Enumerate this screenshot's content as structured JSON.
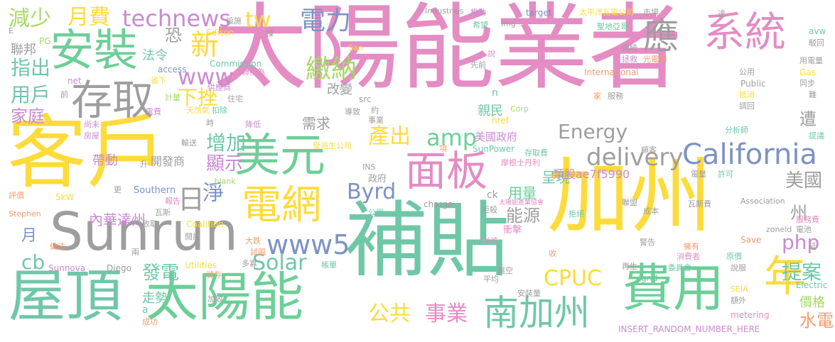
{
  "colors": {
    "pink": "#e48cc3",
    "yellow": "#fddb3a",
    "green": "#6ccf98",
    "teal": "#6fc7a8",
    "blue": "#7d92c4",
    "gray": "#9e9e9e",
    "lime": "#a7d866",
    "orange": "#f59b6d",
    "purple": "#c98bd0"
  },
  "words": [
    {
      "text": "太陽能業者",
      "color": "pink"
    },
    {
      "text": "客戶",
      "color": "yellow"
    },
    {
      "text": "加州",
      "color": "yellow"
    },
    {
      "text": "補貼",
      "color": "teal"
    },
    {
      "text": "Sunrun",
      "color": "gray"
    },
    {
      "text": "屋頂",
      "color": "teal"
    },
    {
      "text": "太陽能",
      "color": "green"
    },
    {
      "text": "費用",
      "color": "green"
    },
    {
      "text": "安裝",
      "color": "green"
    },
    {
      "text": "系統",
      "color": "pink"
    },
    {
      "text": "應",
      "color": "gray"
    },
    {
      "text": "存取",
      "color": "gray"
    },
    {
      "text": "美元",
      "color": "green"
    },
    {
      "text": "電網",
      "color": "yellow"
    },
    {
      "text": "面板",
      "color": "pink"
    },
    {
      "text": "年",
      "color": "yellow"
    },
    {
      "text": "南加州",
      "color": "teal"
    },
    {
      "text": "California",
      "color": "blue"
    },
    {
      "text": "delivery",
      "color": "gray"
    },
    {
      "text": "technews",
      "color": "purple"
    },
    {
      "text": "電力",
      "color": "blue"
    },
    {
      "text": "繳納",
      "color": "lime"
    },
    {
      "text": "月費",
      "color": "yellow"
    },
    {
      "text": "減少",
      "color": "lime"
    },
    {
      "text": "tw",
      "color": "yellow"
    },
    {
      "text": "新",
      "color": "yellow"
    },
    {
      "text": "恐",
      "color": "gray"
    },
    {
      "text": "www",
      "color": "purple"
    },
    {
      "text": "指出",
      "color": "teal"
    },
    {
      "text": "用戶",
      "color": "teal"
    },
    {
      "text": "家庭",
      "color": "purple"
    },
    {
      "text": "下挫",
      "color": "yellow"
    },
    {
      "text": "日",
      "color": "gray"
    },
    {
      "text": "淨",
      "color": "blue"
    },
    {
      "text": "增加",
      "color": "teal"
    },
    {
      "text": "顯示",
      "color": "purple"
    },
    {
      "text": "產出",
      "color": "yellow"
    },
    {
      "text": "amp",
      "color": "green"
    },
    {
      "text": "Energy",
      "color": "gray"
    },
    {
      "text": "www5",
      "color": "blue"
    },
    {
      "text": "Solar",
      "color": "teal"
    },
    {
      "text": "Byrd",
      "color": "blue"
    },
    {
      "text": "php",
      "color": "purple"
    },
    {
      "text": "CPUC",
      "color": "yellow"
    },
    {
      "text": "公共",
      "color": "yellow"
    },
    {
      "text": "事業",
      "color": "pink"
    },
    {
      "text": "發電",
      "color": "teal"
    },
    {
      "text": "提案",
      "color": "teal"
    },
    {
      "text": "美國",
      "color": "gray"
    },
    {
      "text": "州",
      "color": "gray"
    },
    {
      "text": "能源",
      "color": "gray"
    },
    {
      "text": "水電",
      "color": "orange"
    },
    {
      "text": "cb",
      "color": "teal"
    },
    {
      "text": "月",
      "color": "blue"
    },
    {
      "text": "內華達州",
      "color": "purple"
    },
    {
      "text": "用量",
      "color": "green"
    },
    {
      "text": "呈現",
      "color": "teal"
    },
    {
      "text": "遭",
      "color": "gray"
    },
    {
      "text": "類股ae7f5990",
      "color": "purple"
    },
    {
      "text": "美國政府",
      "color": "purple"
    },
    {
      "text": "需求",
      "color": "gray"
    },
    {
      "text": "親民",
      "color": "teal"
    },
    {
      "text": "改變",
      "color": "gray"
    },
    {
      "text": "走勢",
      "color": "teal"
    },
    {
      "text": "帶動",
      "color": "purple"
    },
    {
      "text": "開發商",
      "color": "gray"
    },
    {
      "text": "價格",
      "color": "lime"
    },
    {
      "text": "聯邦",
      "color": "gray"
    },
    {
      "text": "法令",
      "color": "teal"
    },
    {
      "text": "src",
      "color": "gray"
    },
    {
      "text": "Industries",
      "color": "gray"
    },
    {
      "text": "SunPower",
      "color": "teal"
    },
    {
      "text": "INSERT_RANDOM_NUMBER_HERE",
      "color": "purple"
    },
    {
      "text": "Southern",
      "color": "blue"
    },
    {
      "text": "Sunnova",
      "color": "purple"
    },
    {
      "text": "Diego",
      "color": "gray"
    },
    {
      "text": "International",
      "color": "orange"
    },
    {
      "text": "Electric",
      "color": "teal"
    },
    {
      "text": "metering",
      "color": "pink"
    },
    {
      "text": "Commission",
      "color": "teal"
    },
    {
      "text": "Edison",
      "color": "yellow"
    },
    {
      "text": "target",
      "color": "blue"
    },
    {
      "text": "charge",
      "color": "gray"
    },
    {
      "text": "Association",
      "color": "gray"
    },
    {
      "text": "Stephen",
      "color": "orange"
    },
    {
      "text": "Coalition",
      "color": "yellow"
    },
    {
      "text": "Utilities",
      "color": "yellow"
    },
    {
      "text": "Public",
      "color": "gray"
    },
    {
      "text": "Corp",
      "color": "lime"
    },
    {
      "text": "access",
      "color": "blue"
    },
    {
      "text": "href",
      "color": "yellow"
    },
    {
      "text": "zoneid",
      "color": "gray"
    },
    {
      "text": "Save",
      "color": "orange"
    },
    {
      "text": "grid",
      "color": "teal"
    },
    {
      "text": "avw",
      "color": "teal"
    },
    {
      "text": "Gas",
      "color": "yellow"
    },
    {
      "text": "San",
      "color": "yellow"
    },
    {
      "text": "img",
      "color": "gray"
    },
    {
      "text": "net",
      "color": "purple"
    },
    {
      "text": "INS",
      "color": "gray"
    },
    {
      "text": "SEIA",
      "color": "yellow"
    },
    {
      "text": "5kW",
      "color": "yellow"
    },
    {
      "text": "PG",
      "color": "lime"
    },
    {
      "text": "_blank",
      "color": "lime"
    },
    {
      "text": "太平洋瓦電公司",
      "color": "yellow"
    },
    {
      "text": "聖地亞哥",
      "color": "teal"
    },
    {
      "text": "光電網",
      "color": "orange"
    },
    {
      "text": "傳統",
      "color": "gray"
    },
    {
      "text": "拯救",
      "color": "purple"
    },
    {
      "text": "希望",
      "color": "teal"
    },
    {
      "text": "推動",
      "color": "purple"
    },
    {
      "text": "市場",
      "color": "gray"
    },
    {
      "text": "設施",
      "color": "gray"
    },
    {
      "text": "公用",
      "color": "gray"
    },
    {
      "text": "用電量",
      "color": "gray"
    },
    {
      "text": "駁回",
      "color": "gray"
    },
    {
      "text": "同步",
      "color": "gray"
    },
    {
      "text": "抵消",
      "color": "yellow"
    },
    {
      "text": "調回",
      "color": "gray"
    },
    {
      "text": "分析師",
      "color": "teal"
    },
    {
      "text": "提議",
      "color": "teal"
    },
    {
      "text": "服務",
      "color": "gray"
    },
    {
      "text": "先前",
      "color": "gray"
    },
    {
      "text": "供應商",
      "color": "purple"
    },
    {
      "text": "轉換為",
      "color": "pink"
    },
    {
      "text": "住宅",
      "color": "gray"
    },
    {
      "text": "計量",
      "color": "lime"
    },
    {
      "text": "天然氣",
      "color": "yellow"
    },
    {
      "text": "扣除",
      "color": "teal"
    },
    {
      "text": "降低",
      "color": "purple"
    },
    {
      "text": "房屋",
      "color": "purple"
    },
    {
      "text": "尚未",
      "color": "purple"
    },
    {
      "text": "輸送",
      "color": "gray"
    },
    {
      "text": "受迫生公司",
      "color": "yellow"
    },
    {
      "text": "存取費",
      "color": "teal"
    },
    {
      "text": "摩根士丹利",
      "color": "pink"
    },
    {
      "text": "政府",
      "color": "gray"
    },
    {
      "text": "顧客",
      "color": "gray"
    },
    {
      "text": "電量",
      "color": "gray"
    },
    {
      "text": "許可",
      "color": "teal"
    },
    {
      "text": "聯盟",
      "color": "gray"
    },
    {
      "text": "成本",
      "color": "gray"
    },
    {
      "text": "服務費",
      "color": "pink"
    },
    {
      "text": "電池",
      "color": "gray"
    },
    {
      "text": "瓦斯費",
      "color": "gray"
    },
    {
      "text": "太陽能產業協會",
      "color": "pink"
    },
    {
      "text": "拒絕",
      "color": "teal"
    },
    {
      "text": "拒殺",
      "color": "gray"
    },
    {
      "text": "削減",
      "color": "pink"
    },
    {
      "text": "衝擊",
      "color": "pink"
    },
    {
      "text": "擁有",
      "color": "orange"
    },
    {
      "text": "消費者",
      "color": "pink"
    },
    {
      "text": "委員會",
      "color": "teal"
    },
    {
      "text": "原價",
      "color": "teal"
    },
    {
      "text": "警告",
      "color": "gray"
    },
    {
      "text": "再生",
      "color": "gray"
    },
    {
      "text": "額外",
      "color": "gray"
    },
    {
      "text": "說服",
      "color": "gray"
    },
    {
      "text": "跳空",
      "color": "gray"
    },
    {
      "text": "平均",
      "color": "gray"
    },
    {
      "text": "安裝量",
      "color": "gray"
    },
    {
      "text": "帳單",
      "color": "teal"
    },
    {
      "text": "成功",
      "color": "orange"
    },
    {
      "text": "加收",
      "color": "gray"
    },
    {
      "text": "儲存",
      "color": "orange"
    },
    {
      "text": "多寡",
      "color": "gray"
    },
    {
      "text": "試圖",
      "color": "orange"
    },
    {
      "text": "大跌",
      "color": "orange"
    },
    {
      "text": "做法",
      "color": "orange"
    },
    {
      "text": "收取",
      "color": "gray"
    },
    {
      "text": "報告",
      "color": "pink"
    },
    {
      "text": "瓦斯",
      "color": "gray"
    },
    {
      "text": "閱訊",
      "color": "gray"
    },
    {
      "text": "評價",
      "color": "orange"
    },
    {
      "text": "約",
      "color": "gray"
    },
    {
      "text": "說",
      "color": "pink"
    },
    {
      "text": "項",
      "color": "orange"
    },
    {
      "text": "家",
      "color": "orange"
    },
    {
      "text": "前",
      "color": "gray"
    },
    {
      "text": "省下",
      "color": "yellow"
    },
    {
      "text": "電費",
      "color": "purple"
    },
    {
      "text": "時",
      "color": "gray"
    },
    {
      "text": "n",
      "color": "teal"
    },
    {
      "text": "ck",
      "color": "gray"
    },
    {
      "text": "a",
      "color": "teal"
    },
    {
      "text": "E",
      "color": "gray"
    },
    {
      "text": "棟",
      "color": "gray"
    },
    {
      "text": "升",
      "color": "gray"
    },
    {
      "text": "更",
      "color": "gray"
    },
    {
      "text": "兩",
      "color": "gray"
    },
    {
      "text": "收",
      "color": "orange"
    },
    {
      "text": "達",
      "color": "gray"
    },
    {
      "text": "難",
      "color": "gray"
    },
    {
      "text": "延",
      "color": "gray"
    },
    {
      "text": "公司",
      "color": "teal"
    },
    {
      "text": "事業",
      "color": "gray"
    },
    {
      "text": "導致",
      "color": "gray"
    }
  ]
}
